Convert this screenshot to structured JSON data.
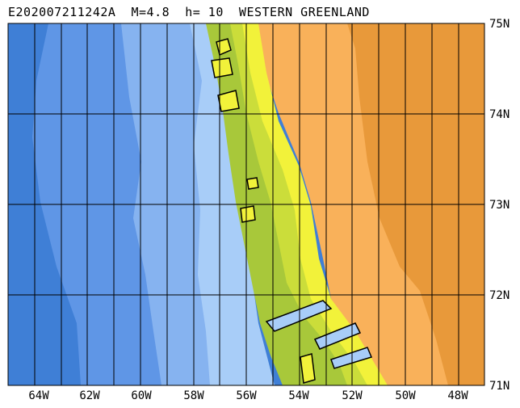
{
  "title": "E202007211242A  M=4.8  h= 10  WESTERN GREENLAND",
  "longitude_labels": [
    "64W",
    "62W",
    "60W",
    "58W",
    "56W",
    "54W",
    "52W",
    "50W",
    "48W"
  ],
  "latitude_labels": [
    "75N",
    "74N",
    "73N",
    "72N",
    "71N"
  ],
  "colors": {
    "deep_ocean": "#3f7fd6",
    "mid_ocean": "#5f96e6",
    "shallow_ocean": "#86b3f0",
    "coastal_water": "#a8cdf8",
    "low_land": "#a8c83a",
    "mid_land": "#cbdd3a",
    "high_land": "#f2f23a",
    "ice_low": "#f9b15a",
    "ice_high": "#e8993a",
    "grid": "#000000"
  }
}
